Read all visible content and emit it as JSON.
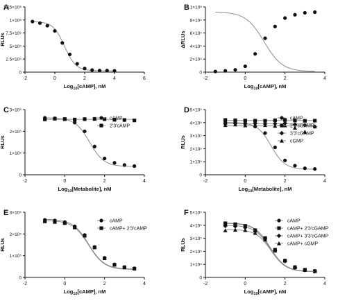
{
  "chart_data": [
    {
      "panel": "A",
      "type": "scatter",
      "xlabel": "Log10[cAMP], nM",
      "ylabel": "RLUs",
      "xlim": [
        -2,
        6
      ],
      "ylim": [
        0,
        1250000
      ],
      "xticks": [
        -2,
        0,
        2,
        4,
        6
      ],
      "yticks": [
        0,
        250000,
        500000,
        750000,
        1000000,
        1250000
      ],
      "ytick_labels": [
        "0",
        "2.5×10⁵",
        "5×10⁵",
        "7.5×10⁵",
        "1×10⁶",
        "1.25×10⁶"
      ],
      "legend": [],
      "series": [
        {
          "x": [
            -1.5,
            -1.0,
            -0.5,
            0.0,
            0.5,
            1.0,
            1.5,
            2.0,
            2.5,
            3.0,
            3.5,
            4.0
          ],
          "y": [
            970000,
            940000,
            890000,
            790000,
            560000,
            340000,
            160000,
            70000,
            40000,
            30000,
            30000,
            25000
          ],
          "marker": "circle",
          "curve": {
            "top": 970000,
            "bottom": 25000,
            "ec50_log": 0.65,
            "hill": 1.15
          }
        }
      ]
    },
    {
      "panel": "B",
      "type": "scatter",
      "xlabel": "Log10[cAMP], nM",
      "ylabel": "ΔRLUs",
      "xlim": [
        -2,
        4
      ],
      "ylim": [
        0,
        1000000
      ],
      "xticks": [
        -2,
        0,
        2,
        4
      ],
      "yticks": [
        0,
        200000,
        400000,
        600000,
        800000,
        1000000
      ],
      "ytick_labels": [
        "0",
        "2×10⁵",
        "4×10⁵",
        "6×10⁵",
        "8×10⁵",
        "1×10⁶"
      ],
      "legend": [],
      "series": [
        {
          "x": [
            -1.5,
            -1.0,
            -0.5,
            0.0,
            0.5,
            1.0,
            1.5,
            2.0,
            2.5,
            3.0,
            3.5
          ],
          "y": [
            10000,
            20000,
            35000,
            90000,
            280000,
            520000,
            700000,
            830000,
            880000,
            910000,
            920000
          ],
          "marker": "circle",
          "curve": {
            "top": 925000,
            "bottom": 8000,
            "ec50_log": 0.95,
            "hill": 0.95
          }
        }
      ]
    },
    {
      "panel": "C",
      "type": "scatter",
      "xlabel": "Log10[Metabolite], nM",
      "ylabel": "RLUs",
      "xlim": [
        -2,
        4
      ],
      "ylim": [
        0,
        300000
      ],
      "xticks": [
        -2,
        0,
        2,
        4
      ],
      "yticks": [
        0,
        100000,
        200000,
        300000
      ],
      "ytick_labels": [
        "0",
        "1×10⁵",
        "2×10⁵",
        "3×10⁵"
      ],
      "legend": [
        "cAMP",
        "2'3'cAMP"
      ],
      "series": [
        {
          "name": "cAMP",
          "x": [
            -1.0,
            -0.5,
            0.0,
            0.5,
            1.0,
            1.5,
            2.0,
            2.5,
            3.0,
            3.5
          ],
          "y": [
            262000,
            260000,
            257000,
            240000,
            200000,
            130000,
            75000,
            55000,
            45000,
            40000
          ],
          "marker": "circle",
          "curve": {
            "top": 262000,
            "bottom": 38000,
            "ec50_log": 1.25,
            "hill": 1.2
          }
        },
        {
          "name": "2'3'cAMP",
          "x": [
            -1.0,
            -0.5,
            0.0,
            0.5,
            1.0,
            1.5,
            2.0,
            2.5,
            3.0,
            3.5
          ],
          "y": [
            255000,
            258000,
            256000,
            254000,
            256000,
            257000,
            256000,
            253000,
            252000,
            250000
          ],
          "marker": "square",
          "curve": {
            "flat": 255000
          }
        }
      ]
    },
    {
      "panel": "D",
      "type": "scatter",
      "xlabel": "Log10[Metabolite], nM",
      "ylabel": "RLUs",
      "xlim": [
        -2,
        4
      ],
      "ylim": [
        0,
        500000
      ],
      "xticks": [
        -2,
        0,
        2,
        4
      ],
      "yticks": [
        0,
        100000,
        200000,
        300000,
        400000,
        500000
      ],
      "ytick_labels": [
        "0",
        "1×10⁵",
        "2×10⁵",
        "3×10⁵",
        "4×10⁵",
        "5×10⁵"
      ],
      "legend": [
        "cAMP",
        "2'3'cGAMP",
        "3'3'cGAMP",
        "cGMP"
      ],
      "series": [
        {
          "name": "cAMP",
          "x": [
            -1.0,
            -0.5,
            0.0,
            0.5,
            1.0,
            1.5,
            2.0,
            2.5,
            3.0,
            3.5
          ],
          "y": [
            400000,
            398000,
            390000,
            370000,
            320000,
            210000,
            110000,
            70000,
            50000,
            45000
          ],
          "marker": "circle",
          "curve": {
            "top": 402000,
            "bottom": 42000,
            "ec50_log": 1.3,
            "hill": 1.25
          }
        },
        {
          "name": "2'3'cGAMP",
          "x": [
            -1.0,
            -0.5,
            0.0,
            0.5,
            1.0,
            1.5,
            2.0,
            2.5,
            3.0,
            3.5
          ],
          "y": [
            420000,
            418000,
            416000,
            415000,
            414000,
            418000,
            420000,
            416000,
            414000,
            415000
          ],
          "marker": "square",
          "curve": {
            "flat": 416000
          }
        },
        {
          "name": "3'3'cGAMP",
          "x": [
            -1.0,
            -0.5,
            0.0,
            0.5,
            1.0,
            1.5,
            2.0,
            2.5,
            3.0,
            3.5
          ],
          "y": [
            390000,
            392000,
            395000,
            393000,
            390000,
            392000,
            395000,
            385000,
            380000,
            370000
          ],
          "marker": "diamond",
          "curve": {
            "flat": 390000
          }
        },
        {
          "name": "cGMP",
          "x": [
            -1.0,
            -0.5,
            0.0,
            0.5,
            1.0,
            1.5,
            2.0,
            2.5,
            3.0,
            3.5
          ],
          "y": [
            380000,
            385000,
            378000,
            382000,
            380000,
            375000,
            378000,
            360000,
            330000,
            370000
          ],
          "marker": "triangle",
          "curve": {
            "flat": 375000
          }
        }
      ]
    },
    {
      "panel": "E",
      "type": "scatter",
      "xlabel": "Log10[cAMP], nM",
      "ylabel": "RLUs",
      "xlim": [
        -2,
        4
      ],
      "ylim": [
        0,
        300000
      ],
      "xticks": [
        -2,
        0,
        2,
        4
      ],
      "yticks": [
        0,
        100000,
        200000,
        300000
      ],
      "ytick_labels": [
        "0",
        "1×10⁵",
        "2×10⁵",
        "3×10⁵"
      ],
      "legend": [
        "cAMP",
        "cAMP+ 2'3'cAMP"
      ],
      "series": [
        {
          "name": "cAMP",
          "x": [
            -1.0,
            -0.5,
            0.0,
            0.5,
            1.0,
            1.5,
            2.0,
            2.5,
            3.0,
            3.5
          ],
          "y": [
            265000,
            262000,
            255000,
            235000,
            195000,
            140000,
            90000,
            60000,
            48000,
            42000
          ],
          "marker": "circle",
          "curve": {
            "top": 268000,
            "bottom": 38000,
            "ec50_log": 1.2,
            "hill": 1.1
          }
        },
        {
          "name": "cAMP+ 2'3'cAMP",
          "x": [
            -1.0,
            -0.5,
            0.0,
            0.5,
            1.0,
            1.5,
            2.0,
            2.5,
            3.0,
            3.5
          ],
          "y": [
            258000,
            255000,
            250000,
            230000,
            192000,
            138000,
            88000,
            58000,
            46000,
            40000
          ],
          "marker": "square",
          "curve": {
            "top": 262000,
            "bottom": 36000,
            "ec50_log": 1.2,
            "hill": 1.1
          }
        }
      ]
    },
    {
      "panel": "F",
      "type": "scatter",
      "xlabel": "Log10[cAMP], nM",
      "ylabel": "RLUs",
      "xlim": [
        -2,
        4
      ],
      "ylim": [
        0,
        500000
      ],
      "xticks": [
        -2,
        0,
        2,
        4
      ],
      "yticks": [
        0,
        100000,
        200000,
        300000,
        400000,
        500000
      ],
      "ytick_labels": [
        "0",
        "1×10⁵",
        "2×10⁵",
        "3×10⁵",
        "4×10⁵",
        "5×10⁵"
      ],
      "legend": [
        "cAMP",
        "cAMP+ 2'3'cGAMP",
        "cAMP+ 3'3'cGAMP",
        "cAMP+ cGMP"
      ],
      "series": [
        {
          "name": "cAMP",
          "x": [
            -1.0,
            -0.5,
            0.0,
            0.5,
            1.0,
            1.5,
            2.0,
            2.5,
            3.0,
            3.5
          ],
          "y": [
            410000,
            405000,
            390000,
            360000,
            300000,
            210000,
            130000,
            80000,
            60000,
            50000
          ],
          "marker": "circle",
          "curve": {
            "top": 415000,
            "bottom": 45000,
            "ec50_log": 1.25,
            "hill": 1.1
          }
        },
        {
          "name": "cAMP+ 2'3'cGAMP",
          "x": [
            -1.0,
            -0.5,
            0.0,
            0.5,
            1.0,
            1.5,
            2.0,
            2.5,
            3.0,
            3.5
          ],
          "y": [
            415000,
            408000,
            395000,
            362000,
            302000,
            212000,
            128000,
            78000,
            58000,
            48000
          ],
          "marker": "square",
          "curve": {
            "top": 418000,
            "bottom": 45000,
            "ec50_log": 1.25,
            "hill": 1.12
          }
        },
        {
          "name": "cAMP+ 3'3'cGAMP",
          "x": [
            -1.0,
            -0.5,
            0.0,
            0.5,
            1.0,
            1.5,
            2.0,
            2.5,
            3.0,
            3.5
          ],
          "y": [
            395000,
            392000,
            382000,
            352000,
            295000,
            205000,
            125000,
            75000,
            56000,
            46000
          ],
          "marker": "diamond",
          "curve": {
            "top": 400000,
            "bottom": 44000,
            "ec50_log": 1.25,
            "hill": 1.12
          }
        },
        {
          "name": "cAMP+ cGMP",
          "x": [
            -1.0,
            -0.5,
            0.0,
            0.5,
            1.0,
            1.5,
            2.0,
            2.5,
            3.0,
            3.5
          ],
          "y": [
            360000,
            365000,
            362000,
            340000,
            290000,
            205000,
            128000,
            78000,
            57000,
            47000
          ],
          "marker": "triangle",
          "curve": {
            "top": 368000,
            "bottom": 44000,
            "ec50_log": 1.3,
            "hill": 1.15
          }
        }
      ]
    }
  ]
}
